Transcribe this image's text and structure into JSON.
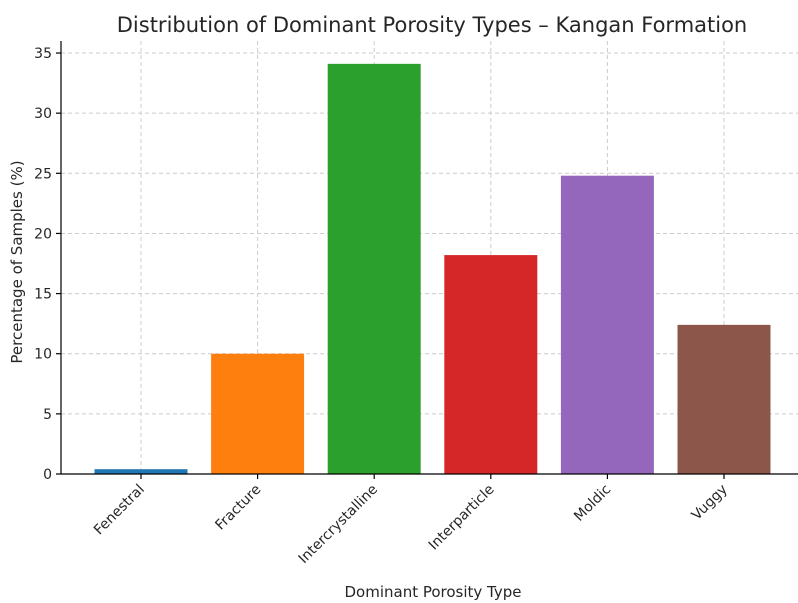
{
  "chart_data": {
    "type": "bar",
    "title": "Distribution of Dominant Porosity Types – Kangan Formation",
    "xlabel": "Dominant Porosity Type",
    "ylabel": "Percentage of Samples (%)",
    "categories": [
      "Fenestral",
      "Fracture",
      "Intercrystalline",
      "Interparticle",
      "Moldic",
      "Vuggy"
    ],
    "values": [
      0.4,
      10.0,
      34.1,
      18.2,
      24.8,
      12.4
    ],
    "colors": [
      "#1f77b4",
      "#ff7f0e",
      "#2ca02c",
      "#d62728",
      "#9467bd",
      "#8c564b"
    ],
    "ylim": [
      0,
      36
    ],
    "yticks": [
      0,
      5,
      10,
      15,
      20,
      25,
      30,
      35
    ],
    "grid": true,
    "legend": "none"
  }
}
